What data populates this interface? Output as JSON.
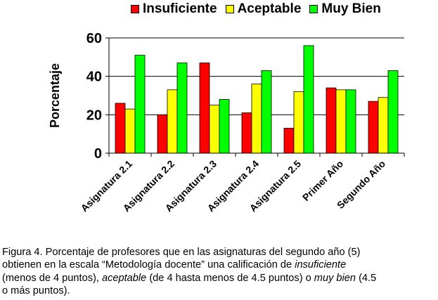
{
  "chart_data": {
    "type": "bar",
    "categories": [
      "Asignatura 2.1",
      "Asignatura 2.2",
      "Asignatura 2.3",
      "Asignatura 2.4",
      "Asignatura 2.5",
      "Primer Año",
      "Segundo Año"
    ],
    "series": [
      {
        "name": "Insuficiente",
        "color": "#ff0000",
        "values": [
          26,
          20,
          47,
          21,
          13,
          34,
          27
        ]
      },
      {
        "name": "Aceptable",
        "color": "#ffff00",
        "values": [
          23,
          33,
          25,
          36,
          32,
          33,
          29
        ]
      },
      {
        "name": "Muy Bien",
        "color": "#00ff00",
        "values": [
          51,
          47,
          28,
          43,
          56,
          33,
          43
        ]
      }
    ],
    "ylabel": "Porcentaje",
    "xlabel": "",
    "ylim": [
      0,
      60
    ],
    "yticks": [
      0,
      20,
      40,
      60
    ],
    "grid": "horizontal",
    "legend": "top"
  },
  "caption": {
    "lines": [
      [
        {
          "t": "Figura 4. Porcentaje de profesores que en las asignaturas del segundo año (5)",
          "i": false
        }
      ],
      [
        {
          "t": "obtienen en la escala “Metodología docente” una calificación de ",
          "i": false
        },
        {
          "t": "insuficiente",
          "i": true
        }
      ],
      [
        {
          "t": "(menos de 4 puntos), ",
          "i": false
        },
        {
          "t": "aceptable",
          "i": true
        },
        {
          "t": " (de 4 hasta menos de 4.5 puntos) o ",
          "i": false
        },
        {
          "t": "muy bien",
          "i": true
        },
        {
          "t": " (4.5",
          "i": false
        }
      ],
      [
        {
          "t": "o más puntos).",
          "i": false
        }
      ]
    ]
  }
}
